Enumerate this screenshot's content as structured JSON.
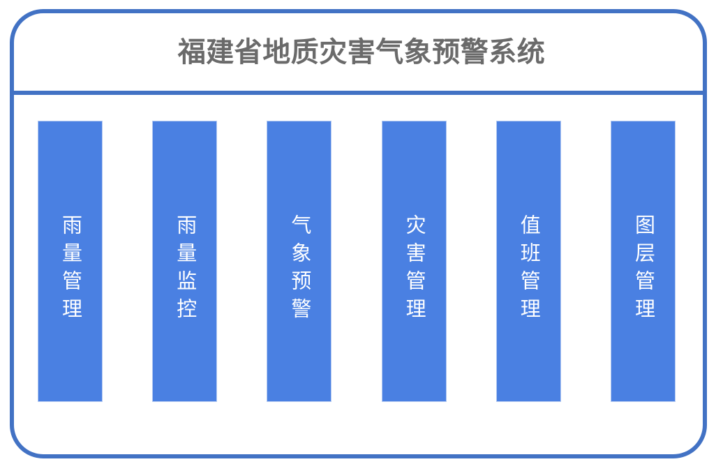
{
  "header": {
    "title": "福建省地质灾害气象预警系统"
  },
  "menu": {
    "items": [
      {
        "label": "雨量管理"
      },
      {
        "label": "雨量监控"
      },
      {
        "label": "气象预警"
      },
      {
        "label": "灾害管理"
      },
      {
        "label": "值班管理"
      },
      {
        "label": "图层管理"
      }
    ]
  },
  "colors": {
    "frame_blue": "#4272C4",
    "divider_blue": "#4272C4",
    "bar_blue": "#4A80E2",
    "bar_border_blue": "#B3C9F1",
    "title_gray": "#6A6A6A",
    "bar_text_white": "#FFFFFF"
  }
}
